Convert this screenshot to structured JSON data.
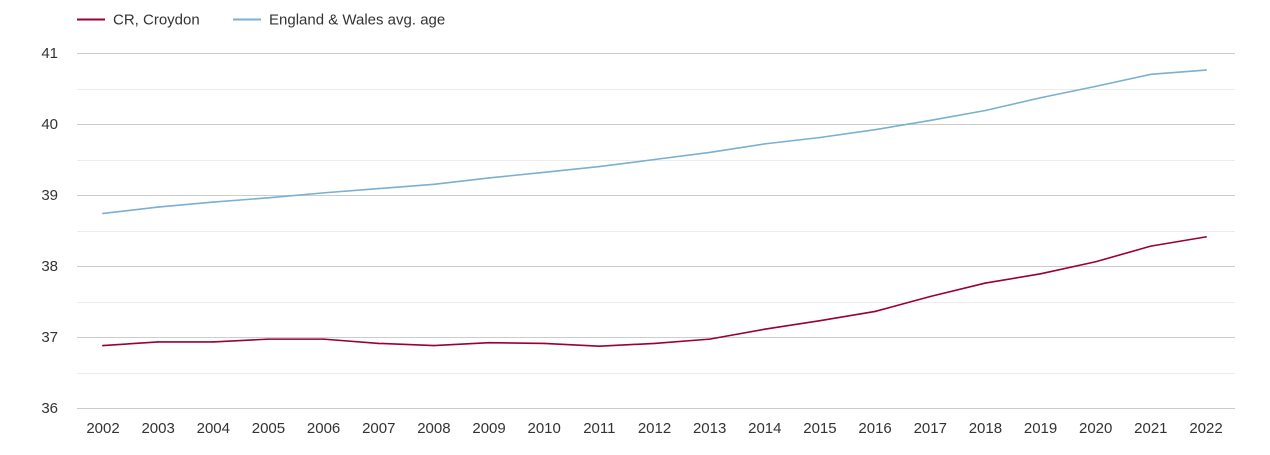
{
  "chart_data": {
    "type": "line",
    "x": [
      "2002",
      "2003",
      "2004",
      "2005",
      "2006",
      "2007",
      "2008",
      "2009",
      "2010",
      "2011",
      "2012",
      "2013",
      "2014",
      "2015",
      "2016",
      "2017",
      "2018",
      "2019",
      "2020",
      "2021",
      "2022"
    ],
    "series": [
      {
        "name": "CR, Croydon",
        "color": "#990033",
        "values": [
          36.88,
          36.93,
          36.93,
          36.97,
          36.97,
          36.91,
          36.88,
          36.92,
          36.91,
          36.87,
          36.91,
          36.97,
          37.11,
          37.23,
          37.36,
          37.57,
          37.76,
          37.89,
          38.06,
          38.28,
          38.41
        ]
      },
      {
        "name": "England & Wales avg. age",
        "color": "#7ab0d0",
        "values": [
          38.74,
          38.83,
          38.9,
          38.96,
          39.03,
          39.09,
          39.15,
          39.24,
          39.32,
          39.4,
          39.5,
          39.6,
          39.72,
          39.81,
          39.92,
          40.05,
          40.19,
          40.37,
          40.53,
          40.7,
          40.76
        ]
      }
    ],
    "yticks": [
      36,
      37,
      38,
      39,
      40,
      41
    ],
    "ylim": [
      36,
      41
    ],
    "grid": true,
    "legend": "top-left"
  }
}
